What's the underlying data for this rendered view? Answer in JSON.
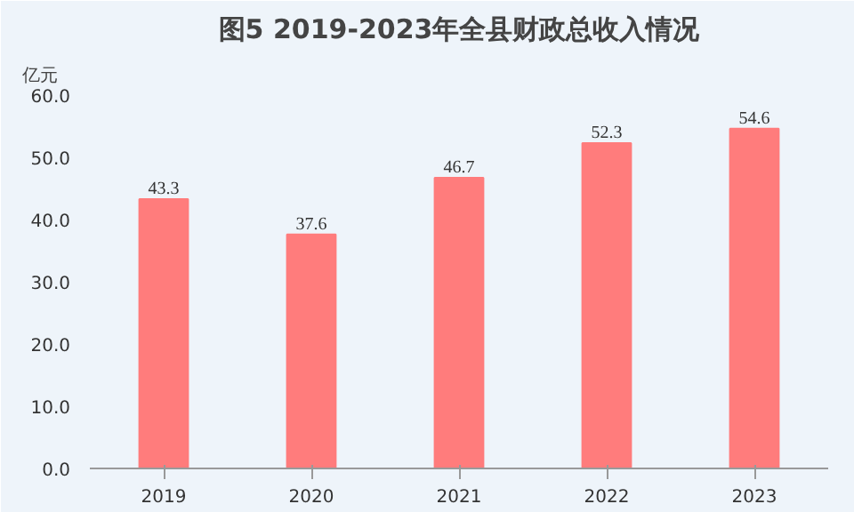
{
  "chart_data": {
    "type": "bar",
    "title": "图5 2019-2023年全县财政总收入情况",
    "ylabel": "亿元",
    "categories": [
      "2019",
      "2020",
      "2021",
      "2022",
      "2023"
    ],
    "values": [
      43.3,
      37.6,
      46.7,
      52.3,
      54.6
    ],
    "color": "#ff7c7c",
    "ylim": [
      0,
      60
    ],
    "yticks": [
      {
        "value": 0,
        "label": "0.0"
      },
      {
        "value": 10,
        "label": "10.0"
      },
      {
        "value": 20,
        "label": "20.0"
      },
      {
        "value": 30,
        "label": "30.0"
      },
      {
        "value": 40,
        "label": "40.0"
      },
      {
        "value": 50,
        "label": "50.0"
      },
      {
        "value": 60,
        "label": "60.0"
      }
    ],
    "grid": false,
    "data_labels": true
  }
}
